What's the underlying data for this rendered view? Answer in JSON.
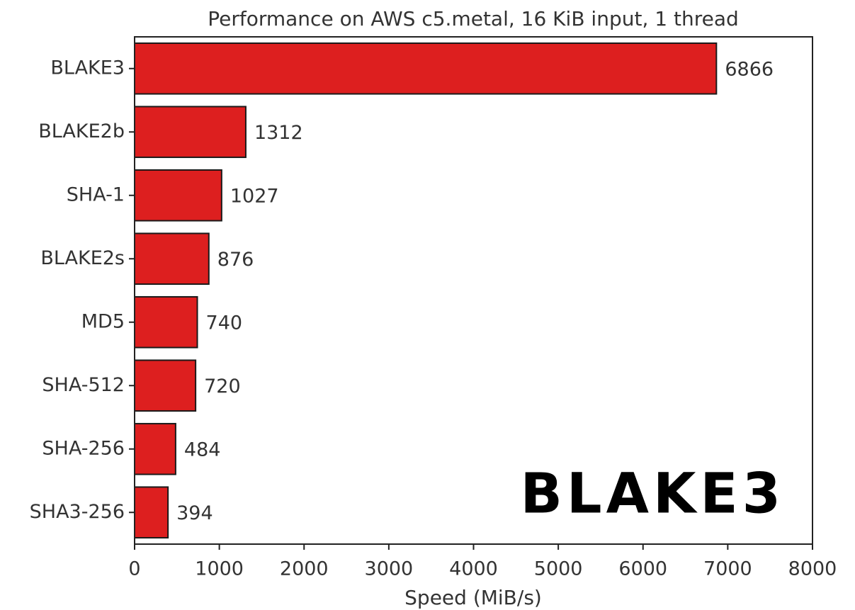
{
  "chart_data": {
    "type": "barh",
    "title": "Performance on AWS c5.metal, 16 KiB input, 1 thread",
    "x_label": "Speed (MiB/s)",
    "categories": [
      "BLAKE3",
      "BLAKE2b",
      "SHA-1",
      "BLAKE2s",
      "MD5",
      "SHA-512",
      "SHA-256",
      "SHA3-256"
    ],
    "values": [
      6866,
      1312,
      1027,
      876,
      740,
      720,
      484,
      394
    ],
    "color": "#dd1f1f",
    "edge_color": "#1a1a1a",
    "xlim": [
      0,
      8000
    ],
    "xticks": [
      0,
      1000,
      2000,
      3000,
      4000,
      5000,
      6000,
      7000,
      8000
    ],
    "grid": false,
    "annotation": "BLAKE3"
  }
}
